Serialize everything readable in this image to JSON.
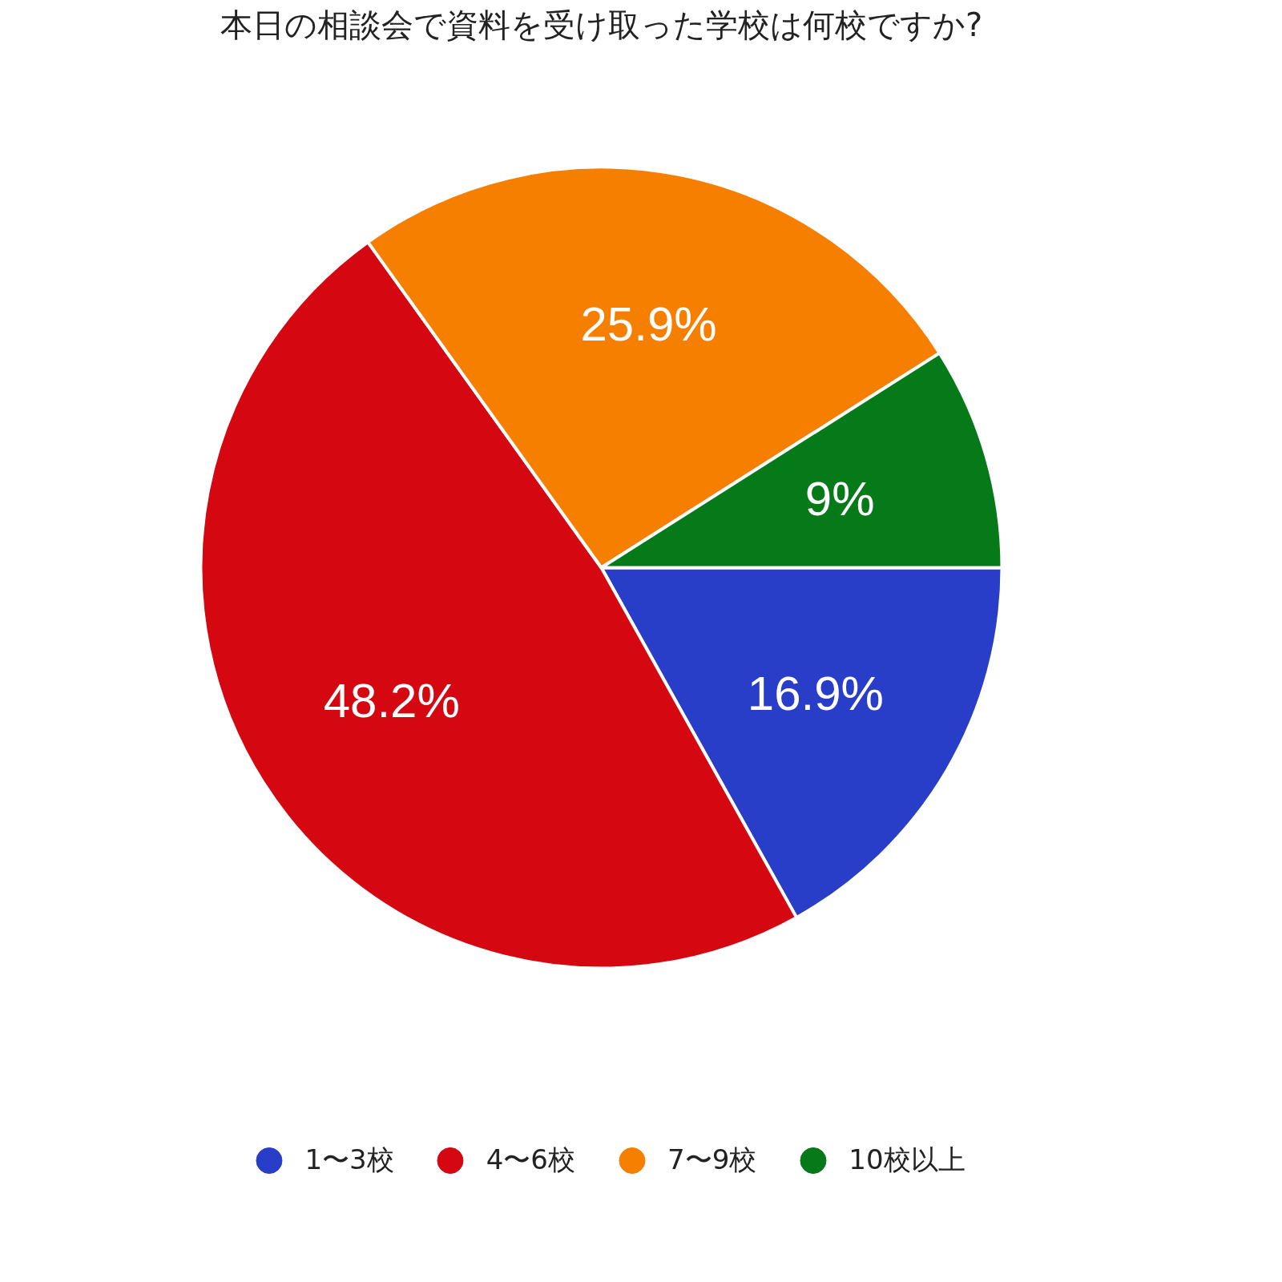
{
  "chart_data": {
    "type": "pie",
    "title": "本日の相談会で資料を受け取った学校は何校ですか?",
    "categories": [
      "1〜3校",
      "4〜6校",
      "7〜9校",
      "10校以上"
    ],
    "values": [
      16.9,
      48.2,
      25.9,
      9
    ],
    "colors": [
      "#283dc8",
      "#d50711",
      "#f77f00",
      "#067919"
    ],
    "value_labels": [
      "16.9%",
      "48.2%",
      "25.9%",
      "9%"
    ],
    "legend": "bottom"
  }
}
